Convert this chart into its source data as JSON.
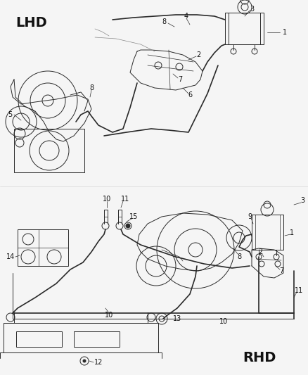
{
  "bg_color": "#f5f5f5",
  "line_color": "#2a2a2a",
  "text_color": "#111111",
  "gray_color": "#888888",
  "lhd_label": "LHD",
  "rhd_label": "RHD",
  "font_size_big": 14,
  "font_size_part": 7,
  "lw_main": 0.7,
  "lw_thick": 1.2,
  "lw_thin": 0.5,
  "figsize": [
    4.38,
    5.33
  ],
  "dpi": 100
}
